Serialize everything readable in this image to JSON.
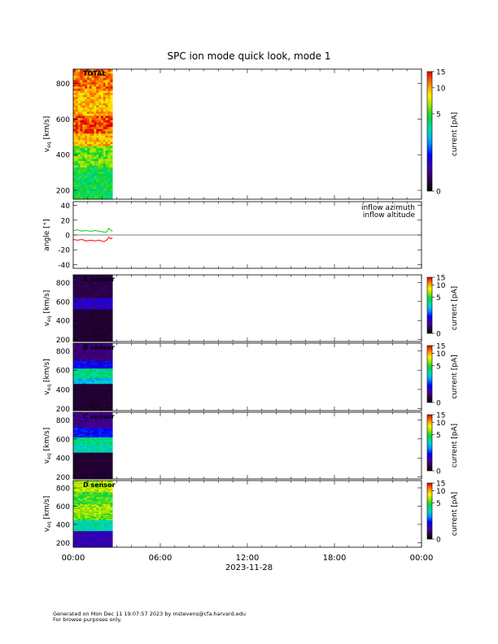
{
  "chart_data": {
    "type": "heatmap",
    "title": "SPC ion mode quick look, mode 1",
    "xlabel": "2023-11-28",
    "x_tick_labels": [
      "00:00",
      "06:00",
      "12:00",
      "18:00",
      "00:00"
    ],
    "x_range_hours": [
      0,
      24
    ],
    "data_coverage_hours": [
      0,
      2.7
    ],
    "panels": [
      {
        "type": "heatmap",
        "label": "TOTAL",
        "ylabel": "v",
        "ylabel_sub": "eq",
        "ylabel_unit": "[km/s]",
        "ylim": [
          150,
          880
        ],
        "y_ticks": [
          200,
          400,
          600,
          800
        ],
        "colorbar": {
          "label": "current [pA]",
          "ticks": [
            0,
            5,
            10,
            15
          ],
          "range": [
            0,
            15
          ],
          "log": true
        },
        "profile": {
          "bands": [
            {
              "v": [
                150,
                330
              ],
              "level": 4.4
            },
            {
              "v": [
                330,
                450
              ],
              "level": 5.8
            },
            {
              "v": [
                450,
                520
              ],
              "level": 9.5
            },
            {
              "v": [
                520,
                620
              ],
              "level": 12.5
            },
            {
              "v": [
                620,
                760
              ],
              "level": 9.8
            },
            {
              "v": [
                760,
                880
              ],
              "level": 11.5
            }
          ]
        }
      },
      {
        "type": "line",
        "ylabel": "angle [°]",
        "ylim": [
          -45,
          45
        ],
        "y_ticks": [
          -40,
          -20,
          0,
          20,
          40
        ],
        "zero_line": true,
        "series": [
          {
            "name": "inflow azimuth",
            "color": "#ff0000",
            "x": [
              0,
              0.3,
              0.6,
              0.9,
              1.2,
              1.5,
              1.8,
              2.1,
              2.3,
              2.45,
              2.6,
              2.7
            ],
            "y": [
              -6,
              -7,
              -6,
              -8,
              -7,
              -8,
              -7,
              -9,
              -7,
              -3,
              -5,
              -4
            ]
          },
          {
            "name": "inflow altitude",
            "color": "#00d000",
            "x": [
              0,
              0.3,
              0.6,
              0.9,
              1.2,
              1.5,
              1.8,
              2.1,
              2.3,
              2.45,
              2.6,
              2.7
            ],
            "y": [
              6,
              7,
              5,
              6,
              5,
              6,
              5,
              4,
              4,
              9,
              6,
              5
            ]
          }
        ]
      },
      {
        "type": "heatmap",
        "label": "A sensor",
        "ylabel": "v",
        "ylabel_sub": "eq",
        "ylabel_unit": "[km/s]",
        "ylim": [
          180,
          880
        ],
        "y_ticks": [
          200,
          400,
          600,
          800
        ],
        "colorbar": {
          "label": "current [pA]",
          "ticks": [
            0,
            5,
            10,
            15
          ],
          "range": [
            0,
            15
          ],
          "log": true
        },
        "profile": {
          "bands": [
            {
              "v": [
                180,
                520
              ],
              "level": 0.2
            },
            {
              "v": [
                520,
                640
              ],
              "level": 0.9
            },
            {
              "v": [
                640,
                880
              ],
              "level": 0.3
            }
          ]
        }
      },
      {
        "type": "heatmap",
        "label": "B sensor",
        "ylabel": "v",
        "ylabel_sub": "eq",
        "ylabel_unit": "[km/s]",
        "ylim": [
          180,
          880
        ],
        "y_ticks": [
          200,
          400,
          600,
          800
        ],
        "colorbar": {
          "label": "current [pA]",
          "ticks": [
            0,
            5,
            10,
            15
          ],
          "range": [
            0,
            15
          ],
          "log": true
        },
        "profile": {
          "bands": [
            {
              "v": [
                180,
                460
              ],
              "level": 0.2
            },
            {
              "v": [
                460,
                520
              ],
              "level": 2.5
            },
            {
              "v": [
                520,
                620
              ],
              "level": 3.7
            },
            {
              "v": [
                620,
                700
              ],
              "level": 1.2
            },
            {
              "v": [
                700,
                880
              ],
              "level": 0.5
            }
          ]
        }
      },
      {
        "type": "heatmap",
        "label": "C sensor",
        "ylabel": "v",
        "ylabel_sub": "eq",
        "ylabel_unit": "[km/s]",
        "ylim": [
          180,
          880
        ],
        "y_ticks": [
          200,
          400,
          600,
          800
        ],
        "colorbar": {
          "label": "current [pA]",
          "ticks": [
            0,
            5,
            10,
            15
          ],
          "range": [
            0,
            15
          ],
          "log": true
        },
        "profile": {
          "bands": [
            {
              "v": [
                180,
                460
              ],
              "level": 0.2
            },
            {
              "v": [
                460,
                540
              ],
              "level": 3.2
            },
            {
              "v": [
                540,
                620
              ],
              "level": 3.8
            },
            {
              "v": [
                620,
                720
              ],
              "level": 1.3
            },
            {
              "v": [
                720,
                880
              ],
              "level": 0.6
            }
          ]
        }
      },
      {
        "type": "heatmap",
        "label": "D sensor",
        "ylabel": "v",
        "ylabel_sub": "eq",
        "ylabel_unit": "[km/s]",
        "ylim": [
          150,
          880
        ],
        "y_ticks": [
          200,
          400,
          600,
          800
        ],
        "colorbar": {
          "label": "current [pA]",
          "ticks": [
            0,
            5,
            10,
            15
          ],
          "range": [
            0,
            15
          ],
          "log": true
        },
        "profile": {
          "bands": [
            {
              "v": [
                150,
                330
              ],
              "level": 0.8
            },
            {
              "v": [
                330,
                450
              ],
              "level": 3.4
            },
            {
              "v": [
                450,
                520
              ],
              "level": 5.8
            },
            {
              "v": [
                520,
                620
              ],
              "level": 6.4
            },
            {
              "v": [
                620,
                760
              ],
              "level": 5.2
            },
            {
              "v": [
                760,
                880
              ],
              "level": 6.8
            }
          ]
        }
      }
    ]
  },
  "footer": {
    "line1": "Generated on Mon Dec 11 19:07:57 2023 by mstevens@cfa.harvard.edu",
    "line2": "For browse purposes only."
  }
}
